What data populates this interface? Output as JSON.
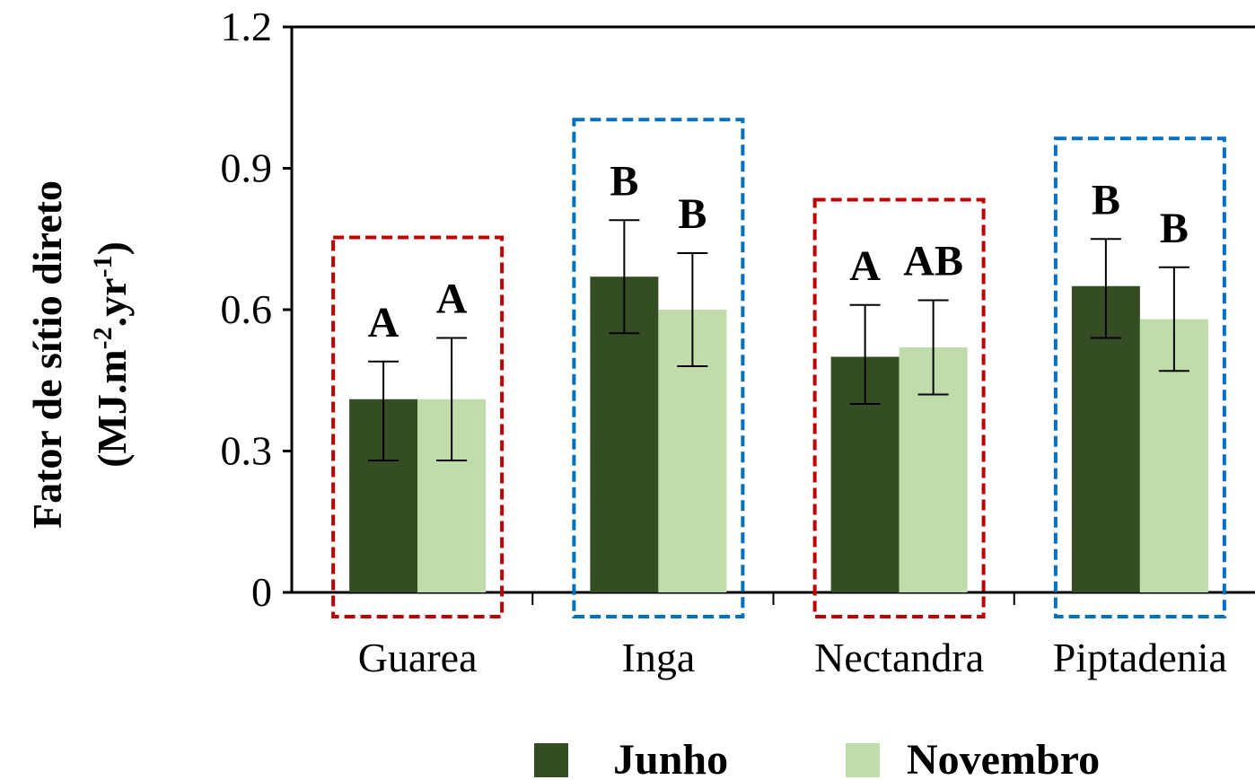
{
  "chart_data": {
    "type": "bar",
    "title": "",
    "xlabel": "",
    "ylabel_line1": "Fator de sítio direto",
    "ylabel_line2_prefix": "(MJ.m",
    "ylabel_sup1": "-2",
    "ylabel_mid": ".yr",
    "ylabel_sup2": "-1",
    "ylabel_suffix": ")",
    "ylim": [
      0,
      1.2
    ],
    "yticks": [
      "0",
      "0.3",
      "0.6",
      "0.9",
      "1.2"
    ],
    "ytick_values": [
      0,
      0.3,
      0.6,
      0.9,
      1.2
    ],
    "categories": [
      "Guarea",
      "Inga",
      "Nectandra",
      "Piptadenia"
    ],
    "series": [
      {
        "name": "Junho",
        "color": "#344d22",
        "values": [
          0.41,
          0.67,
          0.5,
          0.65
        ],
        "err_low": [
          0.28,
          0.55,
          0.4,
          0.54
        ],
        "err_high": [
          0.49,
          0.79,
          0.61,
          0.75
        ],
        "labels": [
          "A",
          "B",
          "A",
          "B"
        ]
      },
      {
        "name": "Novembro",
        "color": "#bfdcaa",
        "values": [
          0.41,
          0.6,
          0.52,
          0.58
        ],
        "err_low": [
          0.28,
          0.48,
          0.42,
          0.47
        ],
        "err_high": [
          0.54,
          0.72,
          0.62,
          0.69
        ],
        "labels": [
          "A",
          "B",
          "AB",
          "B"
        ]
      }
    ],
    "group_box_colors": [
      "#c00000",
      "#0070c0",
      "#c00000",
      "#0070c0"
    ],
    "legend_position": "bottom",
    "grid": false
  }
}
